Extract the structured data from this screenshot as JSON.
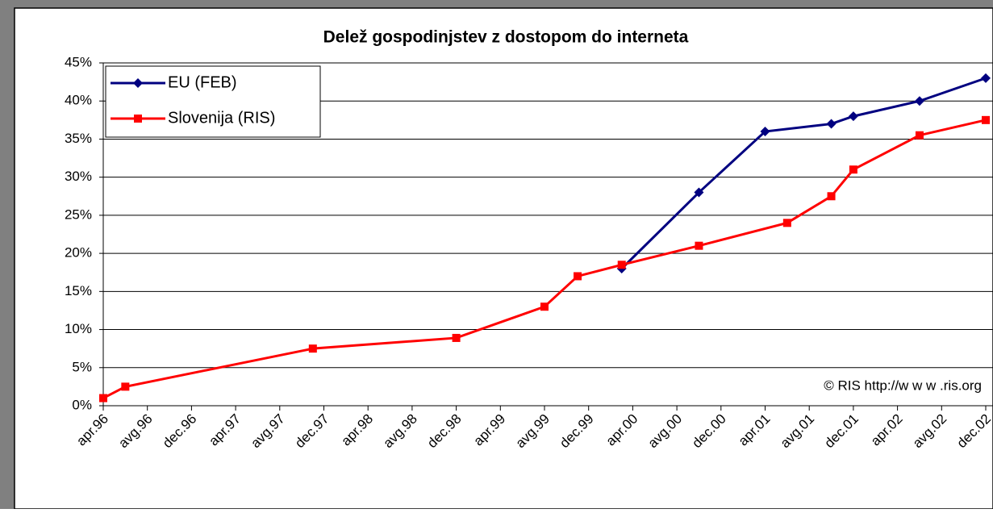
{
  "chart_data": {
    "type": "line",
    "title": "Delež gospodinjstev z dostopom do interneta",
    "annotation": "© RIS http://w w w .ris.org",
    "xlim": [
      "1996-04",
      "2002-12"
    ],
    "xticks": [
      {
        "value": "1996-04",
        "label": "apr.96"
      },
      {
        "value": "1996-08",
        "label": "avg.96"
      },
      {
        "value": "1996-12",
        "label": "dec.96"
      },
      {
        "value": "1997-04",
        "label": "apr.97"
      },
      {
        "value": "1997-08",
        "label": "avg.97"
      },
      {
        "value": "1997-12",
        "label": "dec.97"
      },
      {
        "value": "1998-04",
        "label": "apr.98"
      },
      {
        "value": "1998-08",
        "label": "avg.98"
      },
      {
        "value": "1998-12",
        "label": "dec.98"
      },
      {
        "value": "1999-04",
        "label": "apr.99"
      },
      {
        "value": "1999-08",
        "label": "avg.99"
      },
      {
        "value": "1999-12",
        "label": "dec.99"
      },
      {
        "value": "2000-04",
        "label": "apr.00"
      },
      {
        "value": "2000-08",
        "label": "avg.00"
      },
      {
        "value": "2000-12",
        "label": "dec.00"
      },
      {
        "value": "2001-04",
        "label": "apr.01"
      },
      {
        "value": "2001-08",
        "label": "avg.01"
      },
      {
        "value": "2001-12",
        "label": "dec.01"
      },
      {
        "value": "2002-04",
        "label": "apr.02"
      },
      {
        "value": "2002-08",
        "label": "avg.02"
      },
      {
        "value": "2002-12",
        "label": "dec.02"
      }
    ],
    "ylim": [
      0,
      45
    ],
    "yticks": [
      {
        "value": 0,
        "label": "0%"
      },
      {
        "value": 5,
        "label": "5%"
      },
      {
        "value": 10,
        "label": "10%"
      },
      {
        "value": 15,
        "label": "15%"
      },
      {
        "value": 20,
        "label": "20%"
      },
      {
        "value": 25,
        "label": "25%"
      },
      {
        "value": 30,
        "label": "30%"
      },
      {
        "value": 35,
        "label": "35%"
      },
      {
        "value": 40,
        "label": "40%"
      },
      {
        "value": 45,
        "label": "45%"
      }
    ],
    "grid": true,
    "legend": "upper left",
    "series": [
      {
        "name": "EU (FEB)",
        "color": "#000080",
        "marker": "diamond",
        "x": [
          "2000-03",
          "2000-10",
          "2001-04",
          "2001-10",
          "2001-12",
          "2002-06",
          "2002-12"
        ],
        "values": [
          18,
          28,
          36,
          37,
          38,
          40,
          43
        ]
      },
      {
        "name": "Slovenija (RIS)",
        "color": "#ff0000",
        "marker": "square",
        "x": [
          "1996-04",
          "1996-06",
          "1997-11",
          "1998-12",
          "1999-08",
          "1999-11",
          "2000-03",
          "2000-10",
          "2001-06",
          "2001-10",
          "2001-12",
          "2002-06",
          "2002-12"
        ],
        "values": [
          1,
          2.5,
          7.5,
          8.9,
          13,
          17,
          18.5,
          21,
          24,
          27.5,
          31,
          35.5,
          37.5
        ]
      }
    ]
  }
}
